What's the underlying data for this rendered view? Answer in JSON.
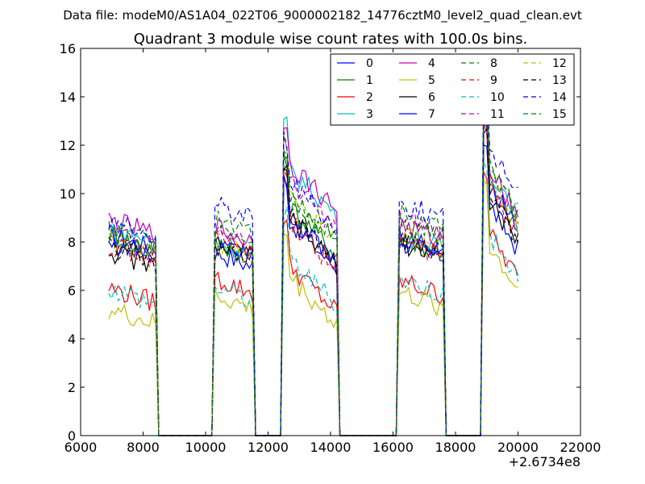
{
  "suptitle": "Data file: modeM0/AS1A04_022T06_9000002182_14776cztM0_level2_quad_clean.evt",
  "chart_data": {
    "type": "line",
    "title": "Quadrant 3 module wise count rates with 100.0s bins.",
    "xlabel": "",
    "ylabel": "",
    "x_offset_label": "+2.6734e8",
    "xlim": [
      6000,
      22000
    ],
    "ylim": [
      0,
      16
    ],
    "xticks": [
      "6000",
      "8000",
      "10000",
      "12000",
      "14000",
      "16000",
      "18000",
      "20000",
      "22000"
    ],
    "yticks": [
      "0",
      "2",
      "4",
      "6",
      "8",
      "10",
      "12",
      "14",
      "16"
    ],
    "grid": false,
    "legend_position": "top-right",
    "x_unit_note": "x values are offsets added to 2.6734e8",
    "segments": [
      [
        6900,
        8400
      ],
      [
        10300,
        11500
      ],
      [
        12500,
        14200
      ],
      [
        16200,
        17600
      ],
      [
        18900,
        20000
      ]
    ],
    "series": [
      {
        "name": "0",
        "color": "#0000ff",
        "dash": "solid",
        "levels": [
          8.0,
          7.3,
          8.0,
          7.7,
          8.8
        ]
      },
      {
        "name": "1",
        "color": "#008000",
        "dash": "solid",
        "levels": [
          8.0,
          7.7,
          8.6,
          7.9,
          9.6
        ]
      },
      {
        "name": "2",
        "color": "#ff0000",
        "dash": "solid",
        "levels": [
          5.8,
          6.2,
          6.2,
          6.1,
          7.6
        ]
      },
      {
        "name": "3",
        "color": "#00bfbf",
        "dash": "solid",
        "levels": [
          8.3,
          7.8,
          10.2,
          8.0,
          10.3
        ]
      },
      {
        "name": "4",
        "color": "#bf00bf",
        "dash": "solid",
        "levels": [
          8.6,
          8.3,
          10.4,
          8.4,
          10.3
        ]
      },
      {
        "name": "5",
        "color": "#bfbf00",
        "dash": "solid",
        "levels": [
          4.9,
          5.5,
          5.7,
          5.6,
          7.1
        ]
      },
      {
        "name": "6",
        "color": "#000000",
        "dash": "solid",
        "levels": [
          7.3,
          7.6,
          8.1,
          7.7,
          9.0
        ]
      },
      {
        "name": "7",
        "color": "#0000ff",
        "dash": "solid",
        "levels": [
          7.7,
          7.9,
          8.2,
          7.9,
          9.7
        ]
      },
      {
        "name": "8",
        "color": "#008000",
        "dash": "dashed",
        "levels": [
          8.3,
          8.5,
          9.1,
          8.9,
          10.3
        ]
      },
      {
        "name": "9",
        "color": "#ff0000",
        "dash": "dashed",
        "levels": [
          7.6,
          7.9,
          8.0,
          7.8,
          9.4
        ]
      },
      {
        "name": "10",
        "color": "#00bfbf",
        "dash": "dashed",
        "levels": [
          5.8,
          5.9,
          6.5,
          6.2,
          7.6
        ]
      },
      {
        "name": "11",
        "color": "#bf00bf",
        "dash": "dashed",
        "levels": [
          8.2,
          8.1,
          9.6,
          8.7,
          10.0
        ]
      },
      {
        "name": "12",
        "color": "#bfbf00",
        "dash": "dashed",
        "levels": [
          7.8,
          7.6,
          9.3,
          8.1,
          9.9
        ]
      },
      {
        "name": "13",
        "color": "#000000",
        "dash": "dashed",
        "levels": [
          7.5,
          7.6,
          8.4,
          7.8,
          9.2
        ]
      },
      {
        "name": "14",
        "color": "#0000ff",
        "dash": "dashed",
        "levels": [
          8.5,
          9.3,
          9.7,
          9.3,
          11.2
        ]
      },
      {
        "name": "15",
        "color": "#008000",
        "dash": "dashed",
        "levels": [
          7.9,
          8.6,
          9.1,
          8.5,
          10.3
        ]
      }
    ]
  }
}
